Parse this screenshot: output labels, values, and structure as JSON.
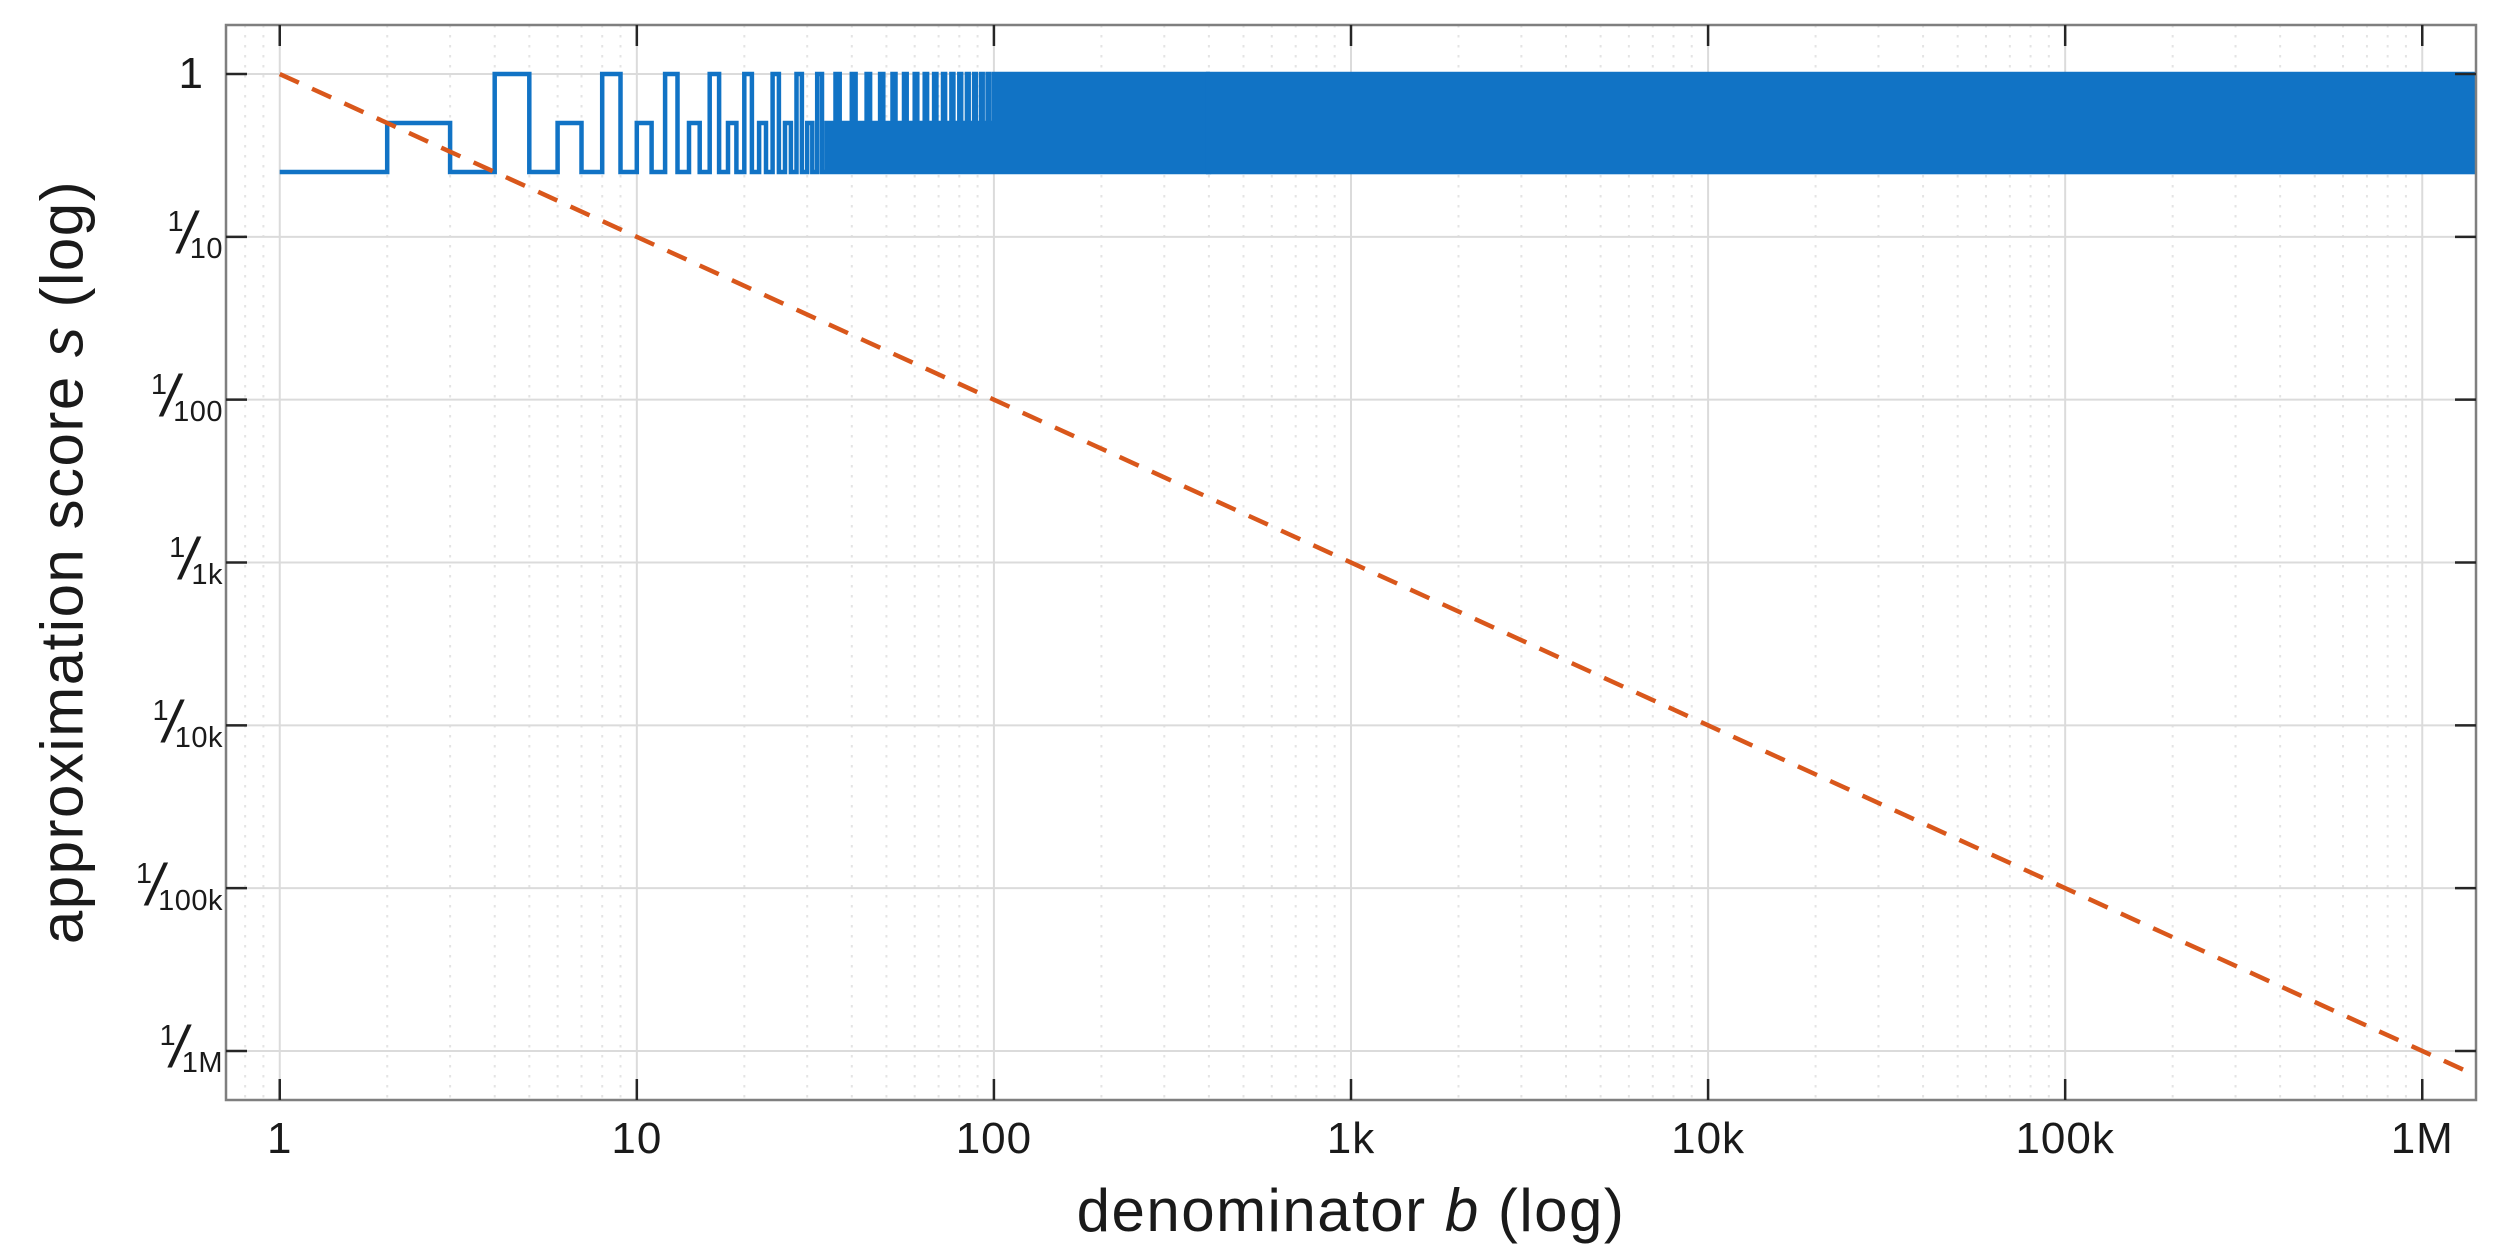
{
  "figure": {
    "background": "#ffffff",
    "description": "log-log step plot of rational approximation score versus denominator"
  },
  "axes": {
    "xlabel": {
      "pre": "denominator ",
      "var": "b",
      "post": " (log)"
    },
    "ylabel": {
      "pre": "approximation score ",
      "var": "s",
      "post": " (log)"
    },
    "x_scale": "log",
    "y_scale": "log",
    "xlim": [
      0.7071,
      1414214
    ],
    "ylim": [
      5e-07,
      2
    ],
    "x_ticks": [
      {
        "v": 1,
        "label": "1"
      },
      {
        "v": 10,
        "label": "10"
      },
      {
        "v": 100,
        "label": "100"
      },
      {
        "v": 1000,
        "label": "1k"
      },
      {
        "v": 10000,
        "label": "10k"
      },
      {
        "v": 100000,
        "label": "100k"
      },
      {
        "v": 1000000,
        "label": "1M"
      }
    ],
    "y_ticks": [
      {
        "v": 1,
        "whole": "1"
      },
      {
        "v": 0.1,
        "num": "1",
        "den": "10"
      },
      {
        "v": 0.01,
        "num": "1",
        "den": "100"
      },
      {
        "v": 0.001,
        "num": "1",
        "den": "1k"
      },
      {
        "v": 0.0001,
        "num": "1",
        "den": "10k"
      },
      {
        "v": 1e-05,
        "num": "1",
        "den": "100k"
      },
      {
        "v": 1e-06,
        "num": "1",
        "den": "1M"
      }
    ],
    "fraction_slash": "/",
    "x_minor_grid": true,
    "y_minor_grid": false,
    "grid_color": "#DBDBDB",
    "minor_grid_color": "#E4E4E4",
    "axis_color": "#7F7F7F",
    "tick_mark_color": "#262626",
    "text_color": "#1a1a1a"
  },
  "chart_data": {
    "type": "line",
    "x_scale": "log",
    "y_scale": "log",
    "xlabel": "denominator b (log)",
    "ylabel": "approximation score s (log)",
    "xlim": [
      0.7071,
      1414214
    ],
    "ylim": [
      5e-07,
      2
    ],
    "legend": "none",
    "series": [
      {
        "name": "approximation score s(b) at integer denominators",
        "style": "step-post",
        "color": "#1173C5",
        "line_width": 4.5,
        "b_start": 1,
        "b_end": 1414214,
        "value_rule": {
          "description": "s = 0.25 if b is odd; s = 0.5 if b = 2 mod 4; s = 1 if b = 0 mod 4",
          "odd": 0.25,
          "even_mod4_2": 0.5,
          "even_mod4_0": 1
        },
        "values_b_1_to_40": [
          0.25,
          0.5,
          0.25,
          1,
          0.25,
          0.5,
          0.25,
          1,
          0.25,
          0.5,
          0.25,
          1,
          0.25,
          0.5,
          0.25,
          1,
          0.25,
          0.5,
          0.25,
          1,
          0.25,
          0.5,
          0.25,
          1,
          0.25,
          0.5,
          0.25,
          1,
          0.25,
          0.5,
          0.25,
          1,
          0.25,
          0.5,
          0.25,
          1,
          0.25,
          0.5,
          0.25,
          1
        ],
        "envelope": {
          "min": 0.25,
          "max": 1
        },
        "dense_band_note": "for large b the steps merge into a solid band between 0.25 and 1"
      },
      {
        "name": "reference line 1/b",
        "equation": "s = 1/b",
        "style": "dashed",
        "color": "#D9571B",
        "line_width": 4.5,
        "dash": [
          21,
          14.5
        ],
        "points": [
          {
            "b": 1,
            "s": 1
          },
          {
            "b": 1414214,
            "s": 7.07e-07
          }
        ]
      }
    ]
  }
}
